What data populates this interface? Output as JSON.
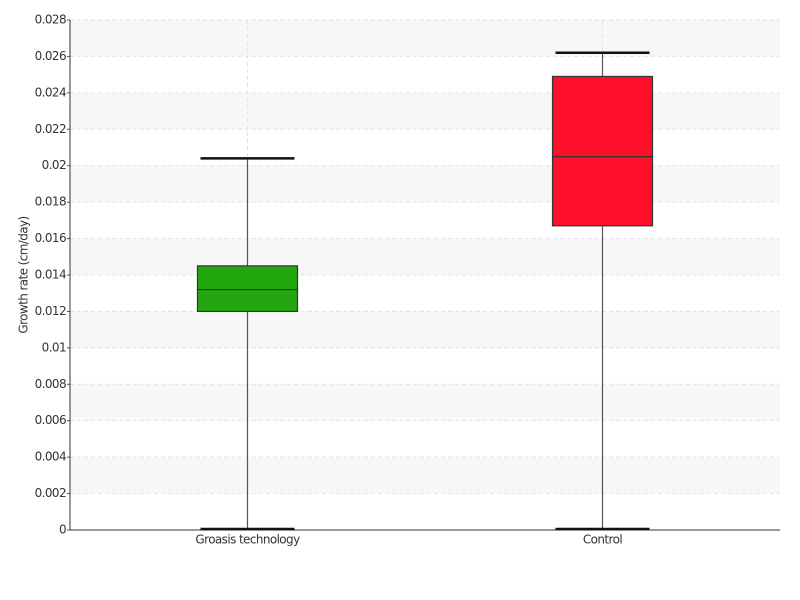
{
  "chart_data": {
    "type": "box",
    "y_label": "Growth rate (cm/day)",
    "categories": [
      "Groasis technology",
      "Control"
    ],
    "boxes": [
      {
        "min": 0,
        "q1": 0.012,
        "median": 0.0132,
        "q3": 0.0145,
        "max": 0.0204,
        "color": "#22a70f"
      },
      {
        "min": 0,
        "q1": 0.0167,
        "median": 0.0205,
        "q3": 0.0249,
        "max": 0.0262,
        "color": "#ff0f2a"
      }
    ],
    "ylim": [
      0,
      0.028
    ],
    "yticks": [
      0,
      0.002,
      0.004,
      0.006,
      0.008,
      0.01,
      0.012,
      0.014,
      0.016,
      0.018,
      0.02,
      0.022,
      0.024,
      0.026,
      0.028
    ],
    "grid": true
  }
}
